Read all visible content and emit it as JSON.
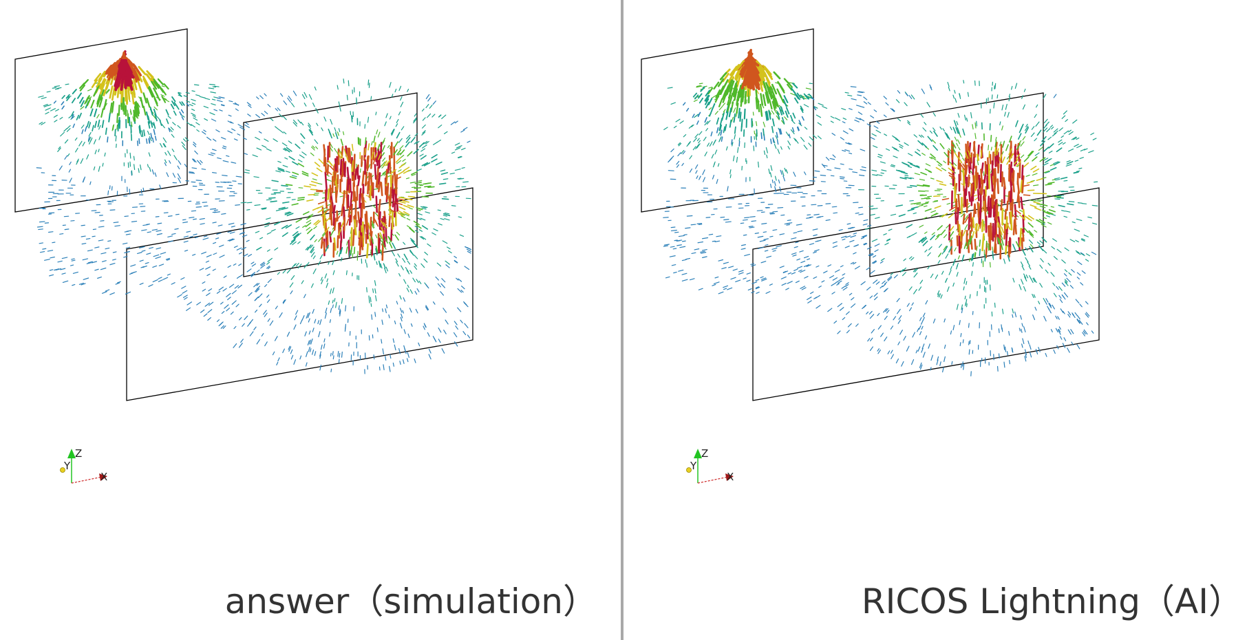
{
  "panels": [
    {
      "caption": "answer（simulation）",
      "variant": "answer",
      "axes": {
        "z": "Z",
        "y": "Y",
        "x": "X"
      }
    },
    {
      "caption": "RICOS Lightning（AI）",
      "variant": "ai",
      "axes": {
        "z": "Z",
        "y": "Y",
        "x": "X"
      }
    }
  ],
  "colors": {
    "low": "#2a7fb8",
    "mid_low": "#1aa08a",
    "mid": "#4fb82a",
    "mid_high": "#d4c21c",
    "high": "#d0561e",
    "peak": "#b8123a",
    "frame": "#000000",
    "divider": "#a8a8a8"
  }
}
